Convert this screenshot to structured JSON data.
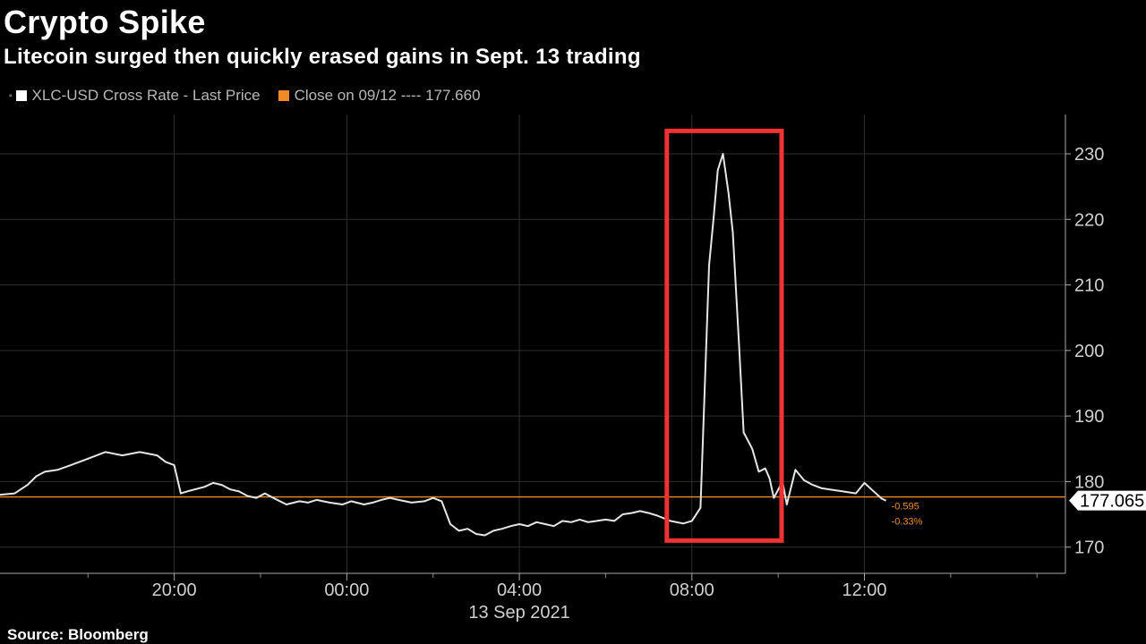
{
  "header": {
    "title": "Crypto Spike",
    "subtitle": "Litecoin surged then quickly erased gains in Sept. 13 trading"
  },
  "legend": {
    "series_label": "XLC-USD Cross Rate - Last Price",
    "close_label": "Close on 09/12 ---- 177.660"
  },
  "footer": {
    "source": "Source: Bloomberg"
  },
  "colors": {
    "line": "#e6e6e6",
    "close": "#f08a24",
    "highlight": "#f03232",
    "grid": "#2e2e2e"
  },
  "chart_data": {
    "type": "line",
    "xlabel": "13 Sep 2021",
    "ylabel": "",
    "ylim": [
      166,
      236
    ],
    "y_ticks": [
      170,
      180,
      190,
      200,
      210,
      220,
      230
    ],
    "x_ticks": [
      {
        "hour": 20,
        "label": "20:00"
      },
      {
        "hour": 24,
        "label": "00:00"
      },
      {
        "hour": 28,
        "label": "04:00"
      },
      {
        "hour": 32,
        "label": "08:00"
      },
      {
        "hour": 36,
        "label": "12:00"
      }
    ],
    "x_range_hours": [
      15.96,
      40.66
    ],
    "close_value": 177.66,
    "last_value_label": "177.065",
    "change_labels": [
      "-0.595",
      "-0.33%"
    ],
    "highlight": {
      "x_start_hour": 31.42,
      "x_end_hour": 34.08,
      "y_min": 171,
      "y_max": 233.5
    },
    "series": [
      {
        "name": "XLC-USD Cross Rate - Last Price",
        "x": [
          15.96,
          16.3,
          16.6,
          16.8,
          17.0,
          17.3,
          17.6,
          18.0,
          18.4,
          18.8,
          19.2,
          19.6,
          19.8,
          20.0,
          20.15,
          20.3,
          20.7,
          20.9,
          21.1,
          21.3,
          21.5,
          21.7,
          21.9,
          22.1,
          22.3,
          22.6,
          22.9,
          23.1,
          23.3,
          23.6,
          23.9,
          24.1,
          24.4,
          24.6,
          24.8,
          25.0,
          25.2,
          25.5,
          25.8,
          26.0,
          26.2,
          26.4,
          26.6,
          26.8,
          27.0,
          27.2,
          27.4,
          27.6,
          27.8,
          28.0,
          28.2,
          28.4,
          28.6,
          28.8,
          29.0,
          29.2,
          29.4,
          29.6,
          29.8,
          30.0,
          30.2,
          30.4,
          30.6,
          30.8,
          31.0,
          31.2,
          31.5,
          31.8,
          32.0,
          32.2,
          32.4,
          32.5,
          32.6,
          32.72,
          32.85,
          32.95,
          33.1,
          33.2,
          33.4,
          33.55,
          33.7,
          33.8,
          33.9,
          34.1,
          34.2,
          34.4,
          34.6,
          34.8,
          35.0,
          35.2,
          35.5,
          35.8,
          36.0,
          36.2,
          36.4,
          36.5
        ],
        "y": [
          178.0,
          178.2,
          179.5,
          180.8,
          181.5,
          181.8,
          182.5,
          183.5,
          184.5,
          184.0,
          184.5,
          184.0,
          183.0,
          182.5,
          178.2,
          178.5,
          179.2,
          179.8,
          179.5,
          178.8,
          178.5,
          177.8,
          177.5,
          178.2,
          177.5,
          176.5,
          177.0,
          176.8,
          177.2,
          176.8,
          176.5,
          177.0,
          176.5,
          176.8,
          177.2,
          177.5,
          177.2,
          176.8,
          177.0,
          177.5,
          177.0,
          173.5,
          172.5,
          172.8,
          172.0,
          171.8,
          172.5,
          172.8,
          173.2,
          173.5,
          173.2,
          173.8,
          173.5,
          173.2,
          174.0,
          173.8,
          174.2,
          173.8,
          174.0,
          174.2,
          174.0,
          175.0,
          175.2,
          175.5,
          175.2,
          174.8,
          174.0,
          173.6,
          174.0,
          176.0,
          213.0,
          220.0,
          227.5,
          230.0,
          224.0,
          218.0,
          200.0,
          187.5,
          185.0,
          181.5,
          182.0,
          180.5,
          177.5,
          180.0,
          176.5,
          181.8,
          180.2,
          179.5,
          179.0,
          178.8,
          178.5,
          178.2,
          179.8,
          178.6,
          177.4,
          177.1
        ]
      }
    ]
  }
}
